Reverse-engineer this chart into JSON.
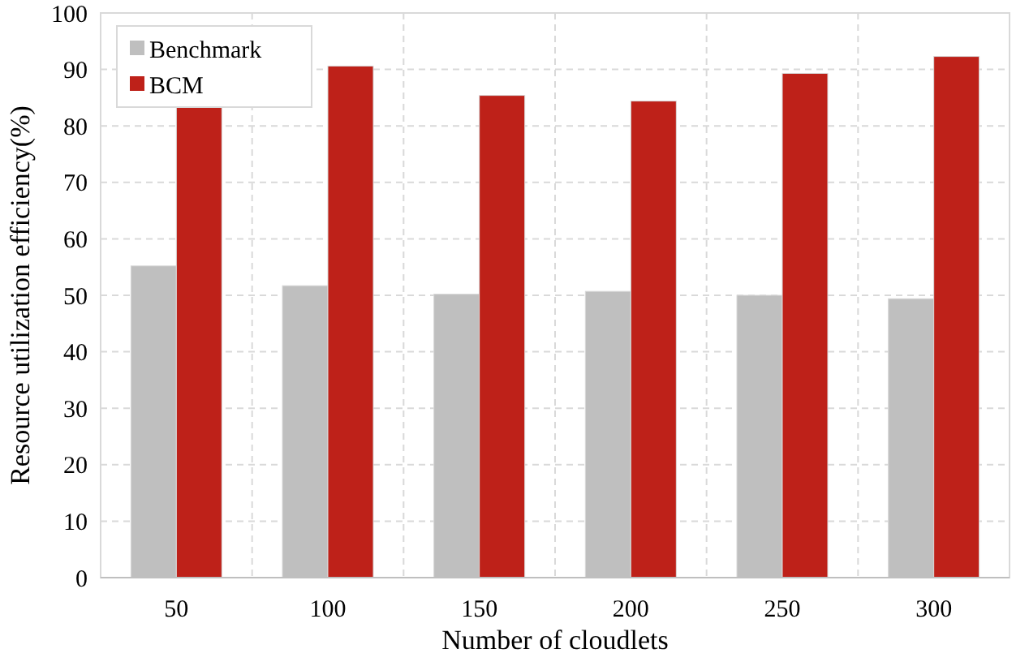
{
  "chart_data": {
    "type": "bar",
    "xlabel": "Number of cloudlets",
    "ylabel": "Resource utilization efficiency(%)",
    "categories": [
      "50",
      "100",
      "150",
      "200",
      "250",
      "300"
    ],
    "series": [
      {
        "name": "Benchmark",
        "color": "#bfbfbf",
        "values": [
          55.2,
          51.7,
          50.2,
          50.7,
          50.0,
          49.4
        ]
      },
      {
        "name": "BCM",
        "color": "#be2119",
        "values": [
          83.3,
          90.6,
          85.4,
          84.4,
          89.3,
          92.3
        ]
      }
    ],
    "ylim": [
      0,
      100
    ],
    "yticks": [
      0,
      10,
      20,
      30,
      40,
      50,
      60,
      70,
      80,
      90,
      100
    ],
    "grid": true,
    "legend": "top left"
  }
}
